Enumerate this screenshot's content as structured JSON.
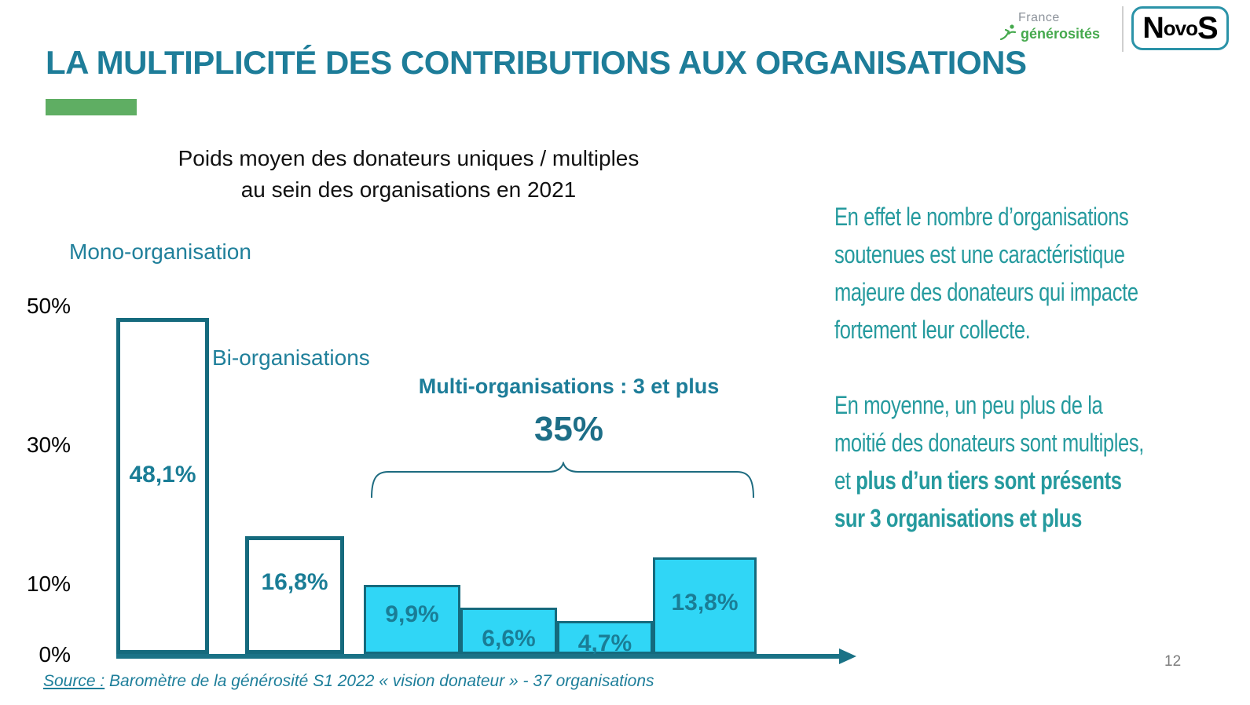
{
  "header": {
    "title": "LA MULTIPLICITÉ DES CONTRIBUTIONS AUX ORGANISATIONS",
    "page_number": "12",
    "logos": {
      "france_generosites_line1": "France",
      "france_generosites_line2": "générosités",
      "novos_n": "N",
      "novos_mid": "ovo",
      "novos_s": "S"
    }
  },
  "chart_data": {
    "type": "bar",
    "title_lines": [
      "Poids moyen des donateurs uniques / multiples",
      "au sein des organisations en 2021"
    ],
    "xlabel": "",
    "ylabel": "",
    "ylim": [
      0,
      52
    ],
    "grid": false,
    "y_axis_ticks": [
      "50%",
      "30%",
      "10%",
      "0%"
    ],
    "bars": [
      {
        "group": "Mono-organisation",
        "value": 48.1,
        "display": "48,1%",
        "style": "outline"
      },
      {
        "group": "Bi-organisations",
        "value": 16.8,
        "display": "16,8%",
        "style": "outline"
      },
      {
        "group": "Multi-organisations : 3 et plus",
        "value": 9.9,
        "display": "9,9%",
        "style": "solid"
      },
      {
        "group": "Multi-organisations : 3 et plus",
        "value": 6.6,
        "display": "6,6%",
        "style": "solid"
      },
      {
        "group": "Multi-organisations : 3 et plus",
        "value": 4.7,
        "display": "4,7%",
        "style": "solid"
      },
      {
        "group": "Multi-organisations : 3 et plus",
        "value": 13.8,
        "display": "13,8%",
        "style": "solid"
      }
    ],
    "group_labels": {
      "mono": "Mono-organisation",
      "bi": "Bi-organisations",
      "multi": "Multi-organisations : 3 et plus",
      "multi_total": "35%"
    }
  },
  "insight": {
    "para1_lines": [
      "En effet le nombre d’organisations",
      "soutenues est une caractéristique",
      "majeure des donateurs qui impacte",
      "fortement leur collecte."
    ],
    "para2_regular_lines": [
      "En moyenne, un peu plus de la",
      "moitié des donateurs sont multiples,",
      "et "
    ],
    "para2_bold_lines": [
      "plus d’un tiers sont présents",
      "sur 3 organisations et plus"
    ]
  },
  "footer": {
    "source_label": "Source :",
    "source_text": " Baromètre de la générosité S1 2022 « vision donateur » - 37 organisations"
  },
  "colors": {
    "title_teal": "#1e7d99",
    "accent_green": "#5fae63",
    "bar_border": "#156a7d",
    "bar_fill_cyan": "#30d6f6",
    "value_text": "#1a7d96",
    "axis": "#1a7286",
    "insight_text": "#259a9e",
    "source_text": "#1d7e9a",
    "page_number_gray": "#7c7c7c",
    "fg_logo_green": "#45a94d",
    "fg_logo_gray": "#8d939b"
  }
}
